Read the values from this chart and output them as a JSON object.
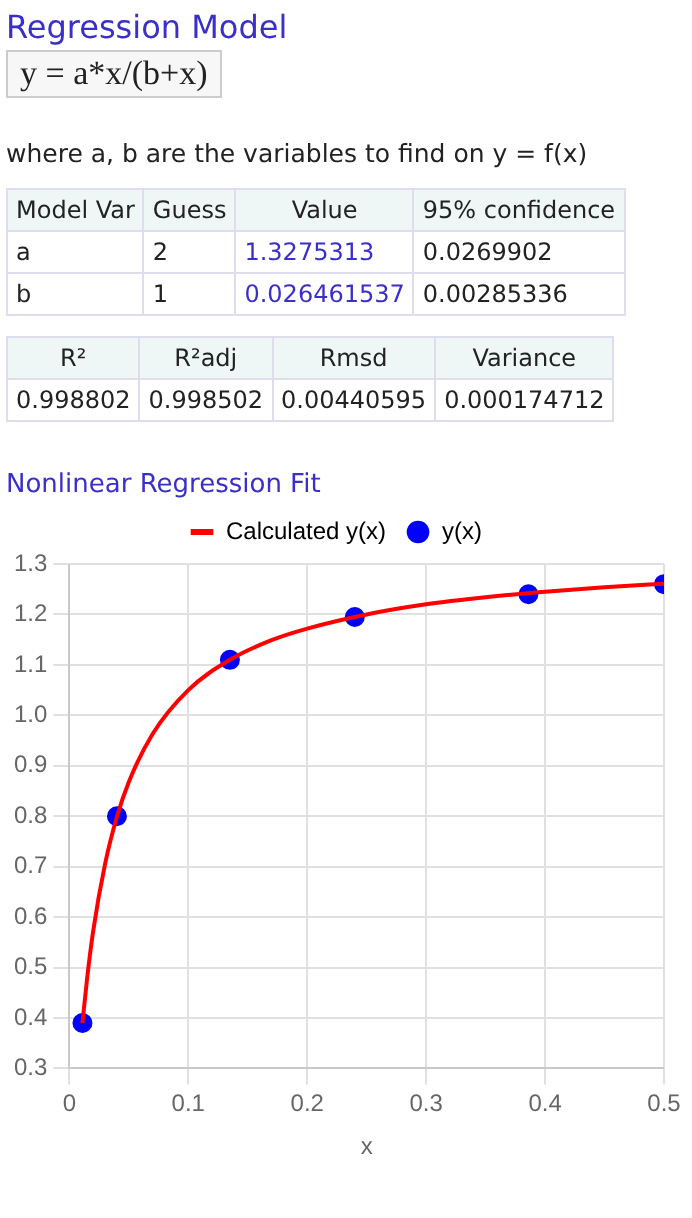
{
  "chart_data": {
    "type": "line",
    "title": "Nonlinear Regression Fit",
    "xlabel": "x",
    "annotations": [
      "Regression Model",
      "y = a*x/(b+x)",
      "where a, b are the variables to find on y = f(x)",
      "Model Var",
      "Guess",
      "Value",
      "95% confidence",
      "a",
      "2",
      "1.3275313",
      "0.0269902",
      "b",
      "1",
      "0.026461537",
      "0.00285336",
      "R²",
      "R²adj",
      "Rmsd",
      "Variance",
      "0.998802",
      "0.998502",
      "0.00440595",
      "0.000174712"
    ],
    "series": [
      {
        "name": "Calculated y(x)",
        "type": "line",
        "color": "#ff0000",
        "marker": "none",
        "x": [
          0.011,
          0.015,
          0.02,
          0.03,
          0.04,
          0.05,
          0.07,
          0.1,
          0.135,
          0.17,
          0.2,
          0.25,
          0.3,
          0.35,
          0.4,
          0.45,
          0.5
        ],
        "values": [
          0.39,
          0.48,
          0.572,
          0.705,
          0.799,
          0.868,
          0.963,
          1.05,
          1.11,
          1.149,
          1.172,
          1.2,
          1.22,
          1.234,
          1.245,
          1.254,
          1.261
        ]
      },
      {
        "name": "y(x)",
        "type": "scatter",
        "color": "#0000ff",
        "marker": "circle",
        "x": [
          0.011,
          0.04,
          0.135,
          0.24,
          0.386,
          0.5
        ],
        "values": [
          0.39,
          0.8,
          1.11,
          1.195,
          1.24,
          1.26
        ]
      }
    ],
    "xlim": [
      0,
      0.5
    ],
    "xticks": [
      {
        "value": 0,
        "label": "0"
      },
      0.1,
      0.2,
      0.3,
      0.4,
      0.5
    ],
    "ylim": [
      0.3,
      1.3
    ],
    "yticks": [
      0.3,
      0.4,
      0.5,
      0.6,
      0.7,
      0.8,
      0.9,
      {
        "value": 1,
        "label": "1.0"
      },
      1.1,
      1.2,
      1.3
    ],
    "grid": true,
    "legend": "top"
  }
}
